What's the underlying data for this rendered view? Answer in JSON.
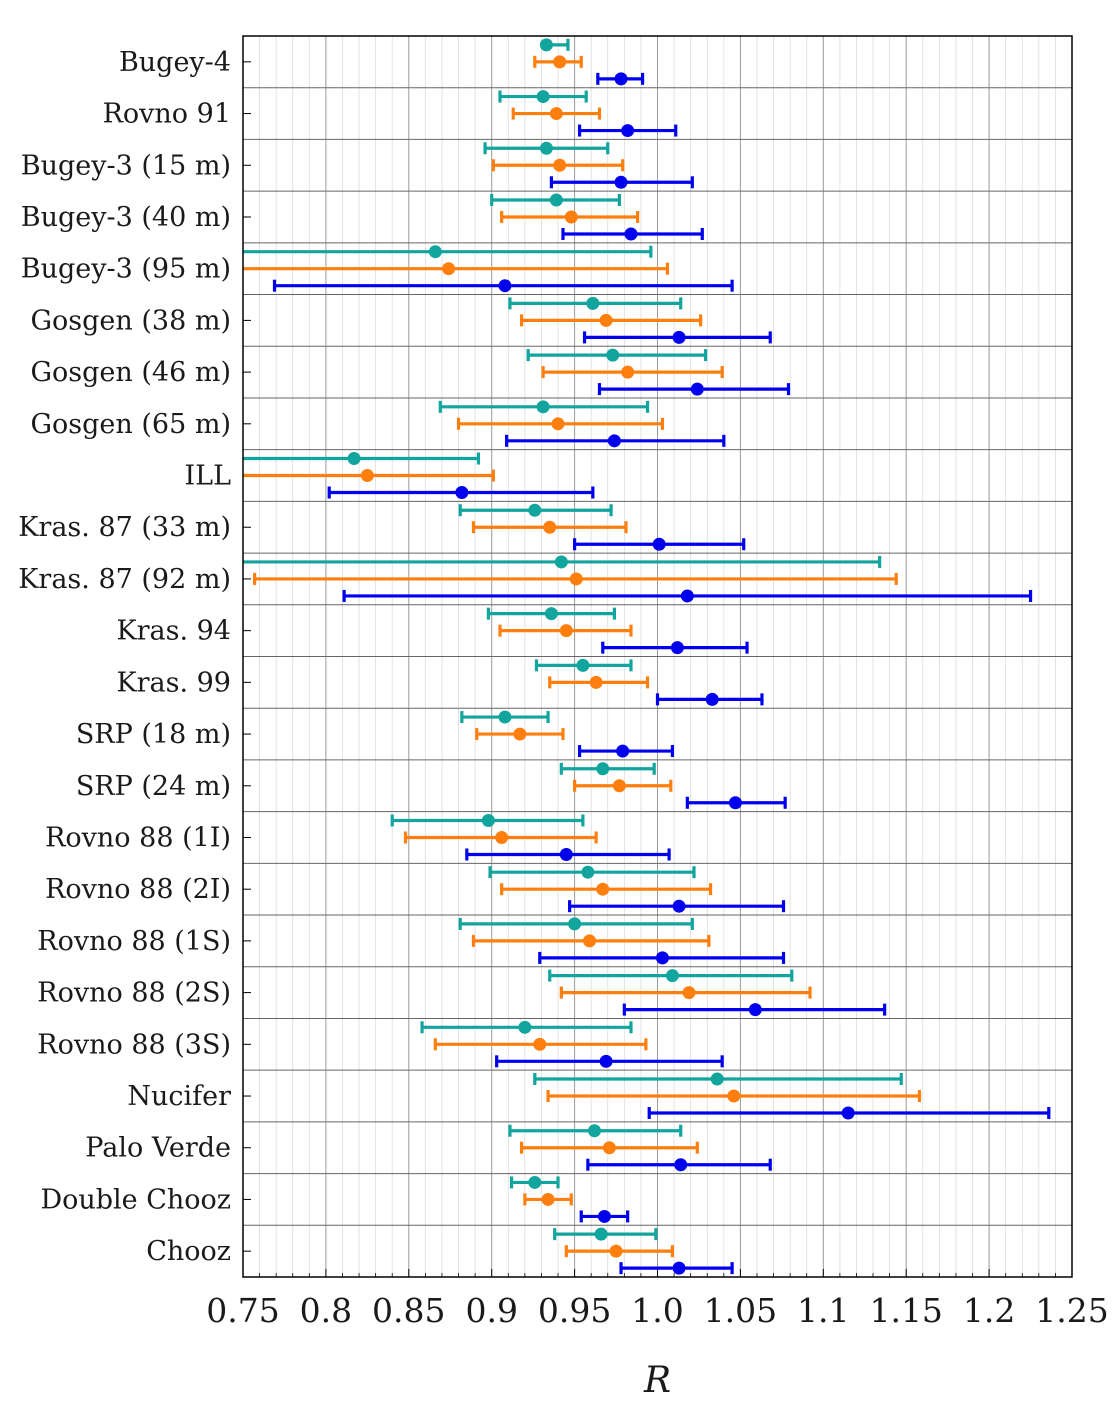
{
  "chart_data": {
    "type": "scatter",
    "xlabel": "R",
    "xlim": [
      0.75,
      1.25
    ],
    "xticks": [
      "0.75",
      "0.8",
      "0.85",
      "0.9",
      "0.95",
      "1.0",
      "1.05",
      "1.1",
      "1.15",
      "1.2",
      "1.25"
    ],
    "xtick_values": [
      0.75,
      0.8,
      0.85,
      0.9,
      0.95,
      1.0,
      1.05,
      1.1,
      1.15,
      1.2,
      1.25
    ],
    "grid": true,
    "colors": [
      "#12a59e",
      "#ff7f0e",
      "#0000ee"
    ],
    "categories": [
      "Bugey-4",
      "Rovno 91",
      "Bugey-3 (15 m)",
      "Bugey-3 (40 m)",
      "Bugey-3 (95 m)",
      "Gosgen (38 m)",
      "Gosgen (46 m)",
      "Gosgen (65 m)",
      "ILL",
      "Kras. 87 (33 m)",
      "Kras. 87 (92 m)",
      "Kras. 94",
      "Kras. 99",
      "SRP (18 m)",
      "SRP (24 m)",
      "Rovno 88 (1I)",
      "Rovno 88 (2I)",
      "Rovno 88 (1S)",
      "Rovno 88 (2S)",
      "Rovno 88 (3S)",
      "Nucifer",
      "Palo Verde",
      "Double Chooz",
      "Chooz"
    ],
    "series": [
      {
        "values": [
          0.933,
          0.931,
          0.933,
          0.939,
          0.866,
          0.961,
          0.973,
          0.931,
          0.817,
          0.926,
          0.942,
          0.936,
          0.955,
          0.908,
          0.967,
          0.898,
          0.958,
          0.95,
          1.009,
          0.92,
          1.036,
          0.962,
          0.926,
          0.966
        ],
        "xerr_low": [
          0.933,
          0.905,
          0.896,
          0.9,
          0.75,
          0.911,
          0.922,
          0.869,
          0.75,
          0.881,
          0.75,
          0.898,
          0.927,
          0.882,
          0.942,
          0.84,
          0.899,
          0.881,
          0.935,
          0.858,
          0.926,
          0.911,
          0.912,
          0.938
        ],
        "xerr_high": [
          0.946,
          0.957,
          0.97,
          0.977,
          0.996,
          1.014,
          1.029,
          0.994,
          0.892,
          0.972,
          1.134,
          0.974,
          0.984,
          0.934,
          0.998,
          0.955,
          1.022,
          1.021,
          1.081,
          0.984,
          1.147,
          1.014,
          0.94,
          0.999
        ]
      },
      {
        "values": [
          0.941,
          0.939,
          0.941,
          0.948,
          0.874,
          0.969,
          0.982,
          0.94,
          0.825,
          0.935,
          0.951,
          0.945,
          0.963,
          0.917,
          0.977,
          0.906,
          0.967,
          0.959,
          1.019,
          0.929,
          1.046,
          0.971,
          0.934,
          0.975
        ],
        "xerr_low": [
          0.926,
          0.913,
          0.901,
          0.906,
          0.75,
          0.918,
          0.931,
          0.88,
          0.75,
          0.889,
          0.757,
          0.905,
          0.935,
          0.891,
          0.95,
          0.848,
          0.906,
          0.889,
          0.942,
          0.866,
          0.934,
          0.918,
          0.92,
          0.945
        ],
        "xerr_high": [
          0.954,
          0.965,
          0.979,
          0.988,
          1.006,
          1.026,
          1.039,
          1.003,
          0.901,
          0.981,
          1.144,
          0.984,
          0.994,
          0.943,
          1.008,
          0.963,
          1.032,
          1.031,
          1.092,
          0.993,
          1.158,
          1.024,
          0.948,
          1.009
        ]
      },
      {
        "values": [
          0.978,
          0.982,
          0.978,
          0.984,
          0.908,
          1.013,
          1.024,
          0.974,
          0.882,
          1.001,
          1.018,
          1.012,
          1.033,
          0.979,
          1.047,
          0.945,
          1.013,
          1.003,
          1.059,
          0.969,
          1.115,
          1.014,
          0.968,
          1.013
        ],
        "xerr_low": [
          0.964,
          0.953,
          0.936,
          0.943,
          0.769,
          0.956,
          0.965,
          0.909,
          0.802,
          0.95,
          0.811,
          0.967,
          1.0,
          0.953,
          1.018,
          0.885,
          0.947,
          0.929,
          0.98,
          0.903,
          0.995,
          0.958,
          0.954,
          0.978
        ],
        "xerr_high": [
          0.991,
          1.011,
          1.021,
          1.027,
          1.045,
          1.068,
          1.079,
          1.04,
          0.961,
          1.052,
          1.225,
          1.054,
          1.063,
          1.009,
          1.077,
          1.007,
          1.076,
          1.076,
          1.137,
          1.039,
          1.236,
          1.068,
          0.982,
          1.045
        ]
      }
    ]
  }
}
